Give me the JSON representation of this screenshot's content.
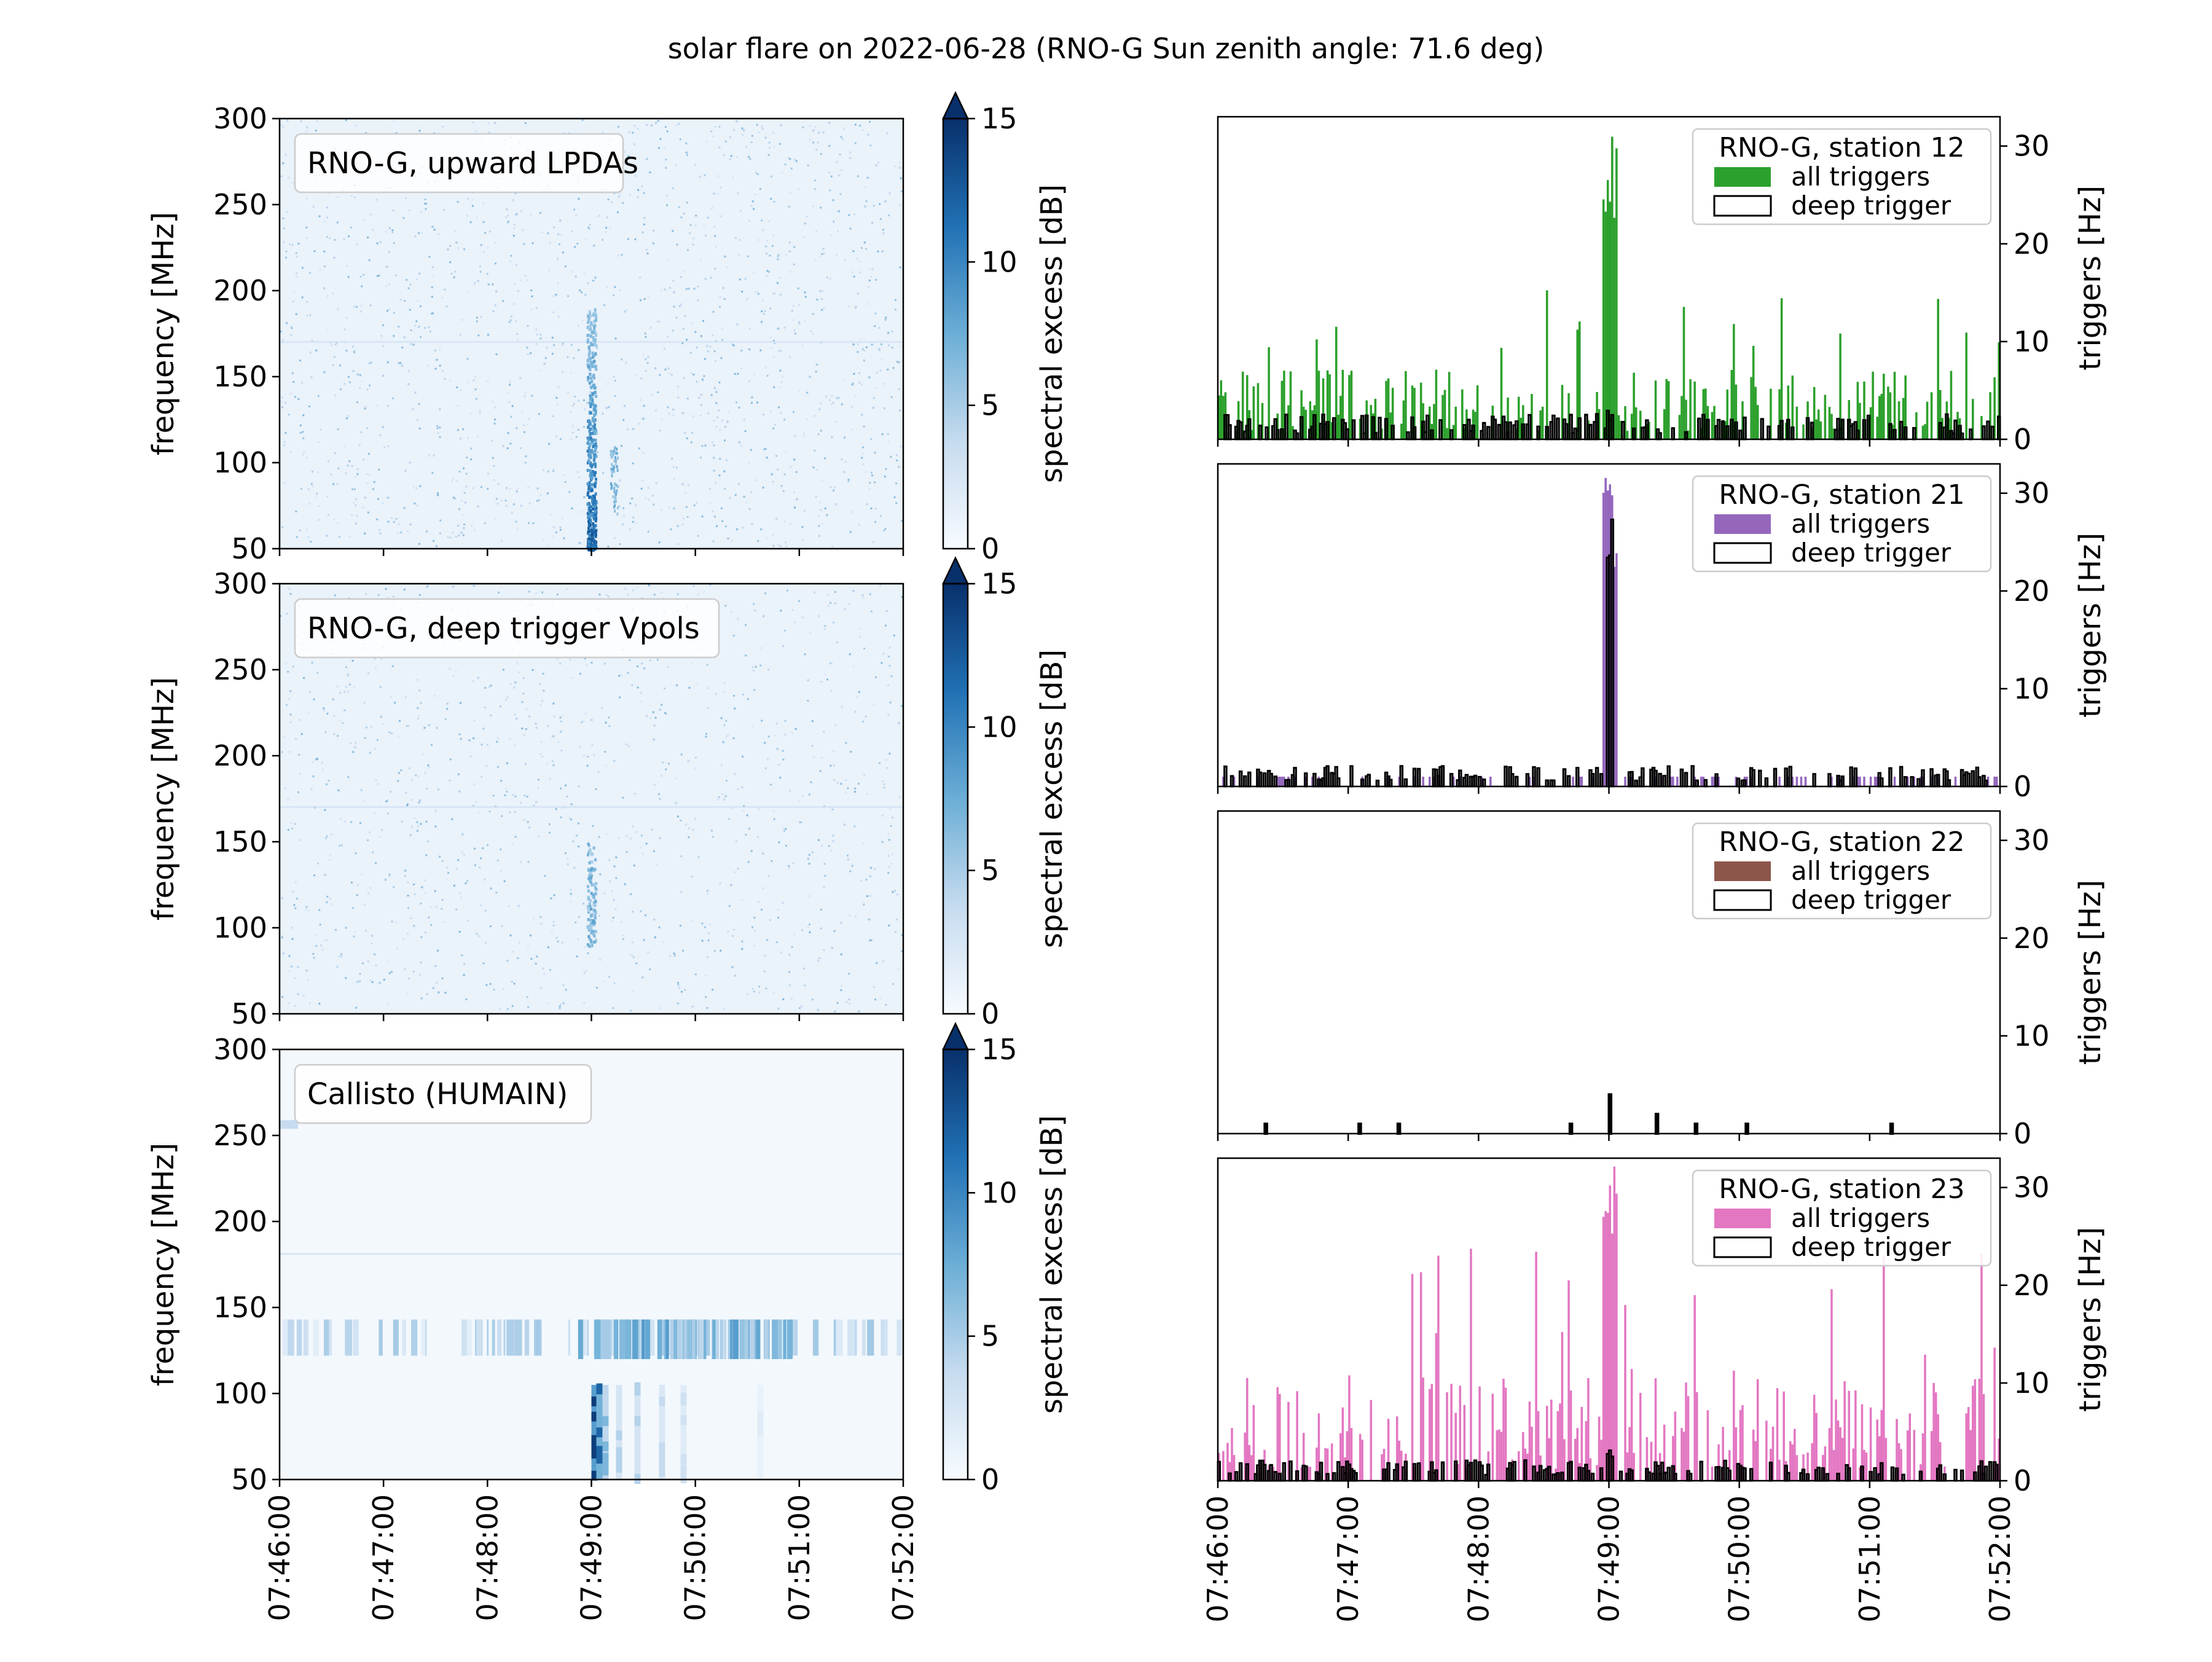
{
  "figure": {
    "title": "solar flare on 2022-06-28 (RNO-G Sun zenith angle: 71.6 deg)"
  },
  "chart_data": [
    {
      "type": "heatmap",
      "label": "RNO-G, upward LPDAs",
      "ylabel": "frequency [MHz]",
      "ylim": [
        50,
        300
      ],
      "yticks": [
        "50",
        "100",
        "150",
        "200",
        "250",
        "300"
      ],
      "colorbar_label": "spectral excess [dB]",
      "colorbar_range": [
        0,
        15
      ],
      "colorbar_ticks": [
        "0",
        "5",
        "10",
        "15"
      ],
      "colormap": [
        "#f7fbff",
        "#c6dbef",
        "#6baed6",
        "#2171b5",
        "#08306b"
      ],
      "burst_time": "07:49:00",
      "burst_freq_range_MHz": [
        50,
        190
      ],
      "xlim": [
        "07:46:00",
        "07:52:00"
      ]
    },
    {
      "type": "heatmap",
      "label": "RNO-G, deep trigger Vpols",
      "ylabel": "frequency [MHz]",
      "ylim": [
        50,
        300
      ],
      "yticks": [
        "50",
        "100",
        "150",
        "200",
        "250",
        "300"
      ],
      "colorbar_label": "spectral excess [dB]",
      "colorbar_range": [
        0,
        15
      ],
      "colorbar_ticks": [
        "0",
        "5",
        "10",
        "15"
      ],
      "burst_time": "07:49:00",
      "burst_freq_range_MHz": [
        90,
        150
      ],
      "xlim": [
        "07:46:00",
        "07:52:00"
      ]
    },
    {
      "type": "heatmap",
      "label": "Callisto (HUMAIN)",
      "ylabel": "frequency [MHz]",
      "ylim": [
        50,
        300
      ],
      "yticks": [
        "50",
        "100",
        "150",
        "200",
        "250",
        "300"
      ],
      "colorbar_label": "spectral excess [dB]",
      "colorbar_range": [
        0,
        15
      ],
      "colorbar_ticks": [
        "0",
        "5",
        "10",
        "15"
      ],
      "burst_time": "07:49:00",
      "burst_freq_range_MHz": [
        50,
        105
      ],
      "xlim": [
        "07:46:00",
        "07:52:00"
      ],
      "xticks": [
        "07:46:00",
        "07:47:00",
        "07:48:00",
        "07:49:00",
        "07:50:00",
        "07:51:00",
        "07:52:00"
      ]
    },
    {
      "type": "bar",
      "legend_title": "RNO-G, station 12",
      "series": [
        {
          "name": "all triggers",
          "color": "#2ca02c",
          "baseline_Hz": 4,
          "peak_Hz": 32
        },
        {
          "name": "deep trigger",
          "color": "#000000",
          "style": "outline",
          "baseline_Hz": 1,
          "peak_Hz": 3
        }
      ],
      "peak_time": "07:49:00",
      "ylabel": "triggers [Hz]",
      "ylim": [
        0,
        33
      ],
      "yticks": [
        "0",
        "10",
        "20",
        "30"
      ],
      "legend_position": "top-right"
    },
    {
      "type": "bar",
      "legend_title": "RNO-G, station 21",
      "series": [
        {
          "name": "all triggers",
          "color": "#9467bd",
          "baseline_Hz": 1,
          "peak_Hz": 32
        },
        {
          "name": "deep trigger",
          "color": "#000000",
          "style": "outline",
          "baseline_Hz": 1,
          "peak_Hz": 32
        }
      ],
      "peak_time": "07:49:00",
      "ylabel": "triggers [Hz]",
      "ylim": [
        0,
        33
      ],
      "yticks": [
        "0",
        "10",
        "20",
        "30"
      ],
      "legend_position": "top-right"
    },
    {
      "type": "bar",
      "legend_title": "RNO-G, station 22",
      "series": [
        {
          "name": "all triggers",
          "color": "#8c564b",
          "baseline_Hz": 0,
          "peak_Hz": 4
        },
        {
          "name": "deep trigger",
          "color": "#000000",
          "style": "outline",
          "baseline_Hz": 0,
          "peak_Hz": 4
        }
      ],
      "peak_time": "07:49:00",
      "ylabel": "triggers [Hz]",
      "ylim": [
        0,
        33
      ],
      "yticks": [
        "0",
        "10",
        "20",
        "30"
      ],
      "legend_position": "top-right"
    },
    {
      "type": "bar",
      "legend_title": "RNO-G, station 23",
      "series": [
        {
          "name": "all triggers",
          "color": "#e377c2",
          "baseline_Hz": 6,
          "peak_Hz": 33
        },
        {
          "name": "deep trigger",
          "color": "#000000",
          "style": "outline",
          "baseline_Hz": 1,
          "peak_Hz": 4
        }
      ],
      "peak_time": "07:49:00",
      "ylabel": "triggers [Hz]",
      "ylim": [
        0,
        33
      ],
      "yticks": [
        "0",
        "10",
        "20",
        "30"
      ],
      "legend_position": "top-right",
      "xticks": [
        "07:46:00",
        "07:47:00",
        "07:48:00",
        "07:49:00",
        "07:50:00",
        "07:51:00",
        "07:52:00"
      ]
    }
  ]
}
